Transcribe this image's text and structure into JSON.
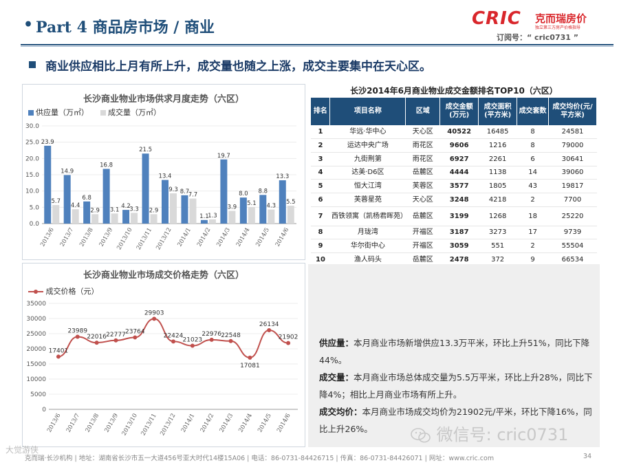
{
  "header": {
    "bullet": "•",
    "title": "Part 4 商品房市场 / 商业",
    "logo_text": "CRIC",
    "logo_cn": "克而瑞房价",
    "logo_sub": "独立第三方房产价格指导",
    "subscribe": "订阅号：“ cric0731 ”"
  },
  "headline": "商业供应相比上月有所上升，成交量也随之上涨，成交主要集中在天心区。",
  "chart1_legend": {
    "supply": "供应量（万㎡）",
    "deal": "成交量（万㎡）"
  },
  "chart2_legend": {
    "price": "成交价格（元）"
  },
  "colors": {
    "supply": "#4f81bd",
    "deal": "#d9d9d9",
    "price": "#c0504d",
    "header_navy": "#1f4e79",
    "brand_red": "#d9262b"
  },
  "table": {
    "title": "长沙2014年6月商业物业成交金额排名TOP10（六区）",
    "headers": [
      "排名",
      "项目名称",
      "区域",
      "成交金额(万元)",
      "成交面积(平方米)",
      "成交套数",
      "成交均价(元/平方米)"
    ],
    "rows": [
      [
        "1",
        "华远·华中心",
        "天心区",
        "40522",
        "16485",
        "8",
        "24581"
      ],
      [
        "2",
        "运达中央广场",
        "雨花区",
        "9606",
        "1216",
        "8",
        "79000"
      ],
      [
        "3",
        "九街荆第",
        "雨花区",
        "6927",
        "2261",
        "6",
        "30641"
      ],
      [
        "4",
        "达美·D6区",
        "岳麓区",
        "4444",
        "1138",
        "14",
        "39060"
      ],
      [
        "5",
        "恒大江湾",
        "芙蓉区",
        "3577",
        "1805",
        "43",
        "19817"
      ],
      [
        "6",
        "芙蓉星苑",
        "天心区",
        "3248",
        "4218",
        "2",
        "7700"
      ],
      [
        "7",
        "西铁领寓（凯杨君晖苑）",
        "岳麓区",
        "3199",
        "1268",
        "18",
        "25220"
      ],
      [
        "8",
        "月珑湾",
        "开福区",
        "3187",
        "3273",
        "17",
        "9739"
      ],
      [
        "9",
        "华尔街中心",
        "开福区",
        "3059",
        "551",
        "2",
        "55504"
      ],
      [
        "10",
        "渔人码头",
        "岳麓区",
        "2478",
        "372",
        "9",
        "66534"
      ]
    ]
  },
  "commentary": [
    {
      "label": "供应量：",
      "text": "本月商业市场新增供应13.3万平米，环比上升51%，同比下降44%。"
    },
    {
      "label": "成交量：",
      "text": "本月商业市场总体成交量为5.5万平米，环比上升28%，同比下降4%；相比上月商业市场有所上升。"
    },
    {
      "label": "成交均价：",
      "text": "本月商业市场成交均价为21902元/平米，环比下降16%，同比上升26%。"
    }
  ],
  "watermark": "微信号: cric0731",
  "footer": "克而瑞·长沙机构  |  地址：湖南省长沙市五一大道456号亚大时代14楼15A06  |  电话：86-0731-84426715  |  传真：86-0731-84426071  |  网址：www.cric.com",
  "footer_wm": "大觉游侠",
  "page_number": "34",
  "chart_data": [
    {
      "type": "bar",
      "title": "长沙商业物业市场供求月度走势（六区）",
      "categories": [
        "2013/6",
        "2013/7",
        "2013/8",
        "2013/9",
        "2013/10",
        "2013/11",
        "2013/12",
        "2014/1",
        "2014/2",
        "2014/3",
        "2014/4",
        "2014/5",
        "2014/6"
      ],
      "series": [
        {
          "name": "供应量（万㎡）",
          "values": [
            23.9,
            14.9,
            6.8,
            16.8,
            4.2,
            21.5,
            13.4,
            8.7,
            1.1,
            19.7,
            8.0,
            8.8,
            13.3
          ]
        },
        {
          "name": "成交量（万㎡）",
          "values": [
            5.7,
            4.4,
            2.9,
            3.1,
            3.3,
            2.9,
            9.3,
            7.7,
            1.3,
            3.9,
            5.1,
            4.3,
            5.5
          ]
        }
      ],
      "labels": [
        [
          "23.9",
          "14.9",
          "6.8",
          "16.8",
          "4.2",
          "21.5",
          "13.4",
          "8.7",
          "1.1",
          "19.7",
          "8.0",
          "8.8",
          "13.3"
        ],
        [
          "5.7",
          "4.4",
          "2.9",
          "3.1",
          "3.3",
          "2.9",
          "9.3",
          "7.7",
          "1.3",
          "3.9",
          "5.1",
          "4.3",
          "5.5"
        ]
      ],
      "ylim": [
        0,
        30
      ],
      "yticks": [
        "0.0",
        "5.0",
        "10.0",
        "15.0",
        "20.0",
        "25.0",
        "30.0"
      ],
      "legend": "top-left"
    },
    {
      "type": "line",
      "title": "长沙商业物业市场成交价格走势（六区）",
      "categories": [
        "2013/6",
        "2013/7",
        "2013/8",
        "2013/9",
        "2013/10",
        "2013/11",
        "2013/12",
        "2014/1",
        "2014/2",
        "2014/3",
        "2014/4",
        "2014/5",
        "2014/6"
      ],
      "series": [
        {
          "name": "成交价格（元）",
          "values": [
            17401,
            23989,
            22016,
            22777,
            23764,
            29903,
            22424,
            21023,
            22976,
            22548,
            17081,
            26134,
            21902
          ]
        }
      ],
      "labels": [
        "17401",
        "23989",
        "22016",
        "22777",
        "23764",
        "29903",
        "22424",
        "21023",
        "22976",
        "22548",
        "17081",
        "26134",
        "21902"
      ],
      "ylim": [
        0,
        35000
      ],
      "yticks": [
        "0",
        "5000",
        "10000",
        "15000",
        "20000",
        "25000",
        "30000",
        "35000"
      ],
      "legend": "top-left"
    }
  ]
}
